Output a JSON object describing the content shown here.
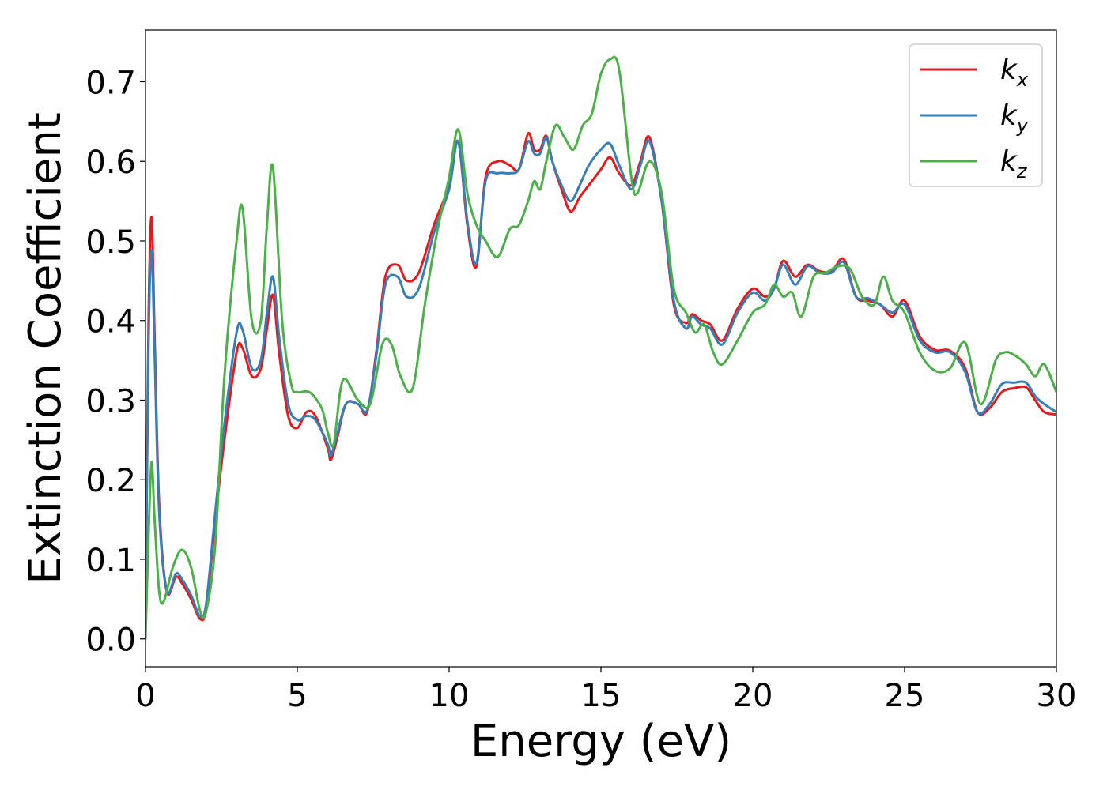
{
  "chart_data": {
    "type": "line",
    "title": "",
    "xlabel": "Energy (eV)",
    "ylabel": "Extinction Coefficient",
    "xlim": [
      0,
      30
    ],
    "ylim": [
      -0.035,
      0.765
    ],
    "xticks": [
      0,
      5,
      10,
      15,
      20,
      25,
      30
    ],
    "xtick_labels": [
      "0",
      "5",
      "10",
      "15",
      "20",
      "25",
      "30"
    ],
    "yticks": [
      0.0,
      0.1,
      0.2,
      0.3,
      0.4,
      0.5,
      0.6,
      0.7
    ],
    "ytick_labels": [
      "0.0",
      "0.1",
      "0.2",
      "0.3",
      "0.4",
      "0.5",
      "0.6",
      "0.7"
    ],
    "grid": false,
    "legend_position": "top-right",
    "series": [
      {
        "name": "k",
        "subscript": "x",
        "color": "#e41a1c",
        "x": [
          0,
          0.1,
          0.2,
          0.3,
          0.45,
          0.7,
          1.0,
          1.2,
          1.5,
          1.8,
          2.0,
          2.3,
          2.6,
          3.0,
          3.2,
          3.5,
          3.8,
          4.0,
          4.2,
          4.4,
          4.7,
          5.0,
          5.3,
          5.6,
          6.0,
          6.1,
          6.3,
          6.6,
          7.0,
          7.3,
          7.6,
          7.9,
          8.3,
          8.6,
          9.0,
          9.5,
          10.0,
          10.3,
          10.6,
          10.9,
          11.2,
          11.6,
          12.0,
          12.3,
          12.6,
          12.8,
          13.0,
          13.2,
          13.4,
          13.7,
          14.0,
          14.3,
          14.6,
          15.0,
          15.3,
          15.6,
          16.0,
          16.3,
          16.6,
          17.0,
          17.4,
          17.8,
          18.0,
          18.3,
          18.6,
          19.0,
          19.5,
          20.0,
          20.4,
          20.7,
          21.0,
          21.4,
          21.8,
          22.2,
          22.6,
          23.0,
          23.4,
          23.8,
          24.2,
          24.6,
          25.0,
          25.5,
          26.0,
          26.5,
          27.0,
          27.4,
          27.8,
          28.2,
          28.6,
          29.0,
          29.3,
          29.6,
          30.0
        ],
        "y": [
          0.03,
          0.4,
          0.53,
          0.38,
          0.17,
          0.06,
          0.078,
          0.07,
          0.05,
          0.025,
          0.04,
          0.15,
          0.25,
          0.36,
          0.365,
          0.33,
          0.34,
          0.39,
          0.432,
          0.36,
          0.28,
          0.265,
          0.285,
          0.28,
          0.24,
          0.225,
          0.25,
          0.295,
          0.295,
          0.285,
          0.36,
          0.455,
          0.47,
          0.45,
          0.46,
          0.52,
          0.57,
          0.625,
          0.52,
          0.468,
          0.58,
          0.6,
          0.595,
          0.59,
          0.635,
          0.615,
          0.615,
          0.632,
          0.6,
          0.565,
          0.537,
          0.555,
          0.57,
          0.59,
          0.605,
          0.585,
          0.57,
          0.6,
          0.63,
          0.55,
          0.42,
          0.397,
          0.408,
          0.4,
          0.395,
          0.375,
          0.415,
          0.44,
          0.43,
          0.44,
          0.475,
          0.455,
          0.47,
          0.462,
          0.462,
          0.477,
          0.43,
          0.425,
          0.42,
          0.405,
          0.425,
          0.38,
          0.363,
          0.362,
          0.34,
          0.285,
          0.29,
          0.31,
          0.315,
          0.316,
          0.3,
          0.285,
          0.282
        ]
      },
      {
        "name": "k",
        "subscript": "y",
        "color": "#377eb8",
        "x": [
          0,
          0.1,
          0.2,
          0.3,
          0.45,
          0.7,
          1.0,
          1.2,
          1.5,
          1.8,
          2.0,
          2.3,
          2.6,
          3.0,
          3.2,
          3.5,
          3.8,
          4.0,
          4.2,
          4.4,
          4.7,
          5.0,
          5.3,
          5.6,
          6.0,
          6.1,
          6.3,
          6.6,
          7.0,
          7.3,
          7.6,
          7.9,
          8.3,
          8.6,
          9.0,
          9.5,
          10.0,
          10.3,
          10.6,
          10.9,
          11.2,
          11.6,
          12.0,
          12.3,
          12.6,
          12.8,
          13.0,
          13.2,
          13.4,
          13.7,
          14.0,
          14.3,
          14.6,
          15.0,
          15.3,
          15.6,
          16.0,
          16.3,
          16.6,
          17.0,
          17.4,
          17.8,
          18.0,
          18.3,
          18.6,
          19.0,
          19.5,
          20.0,
          20.4,
          20.7,
          21.0,
          21.4,
          21.8,
          22.2,
          22.6,
          23.0,
          23.4,
          23.8,
          24.2,
          24.6,
          25.0,
          25.5,
          26.0,
          26.5,
          27.0,
          27.4,
          27.8,
          28.2,
          28.6,
          29.0,
          29.3,
          29.6,
          30.0
        ],
        "y": [
          0.02,
          0.37,
          0.488,
          0.36,
          0.16,
          0.06,
          0.082,
          0.075,
          0.055,
          0.028,
          0.045,
          0.16,
          0.27,
          0.385,
          0.388,
          0.34,
          0.35,
          0.41,
          0.455,
          0.38,
          0.295,
          0.275,
          0.28,
          0.275,
          0.245,
          0.23,
          0.255,
          0.295,
          0.295,
          0.287,
          0.355,
          0.445,
          0.455,
          0.43,
          0.44,
          0.51,
          0.565,
          0.625,
          0.525,
          0.472,
          0.575,
          0.585,
          0.585,
          0.59,
          0.625,
          0.61,
          0.61,
          0.63,
          0.6,
          0.57,
          0.55,
          0.57,
          0.595,
          0.615,
          0.622,
          0.595,
          0.565,
          0.595,
          0.625,
          0.55,
          0.425,
          0.39,
          0.405,
          0.395,
          0.39,
          0.37,
          0.41,
          0.435,
          0.425,
          0.44,
          0.47,
          0.445,
          0.468,
          0.46,
          0.46,
          0.473,
          0.43,
          0.428,
          0.42,
          0.41,
          0.42,
          0.375,
          0.36,
          0.36,
          0.335,
          0.285,
          0.295,
          0.32,
          0.322,
          0.322,
          0.305,
          0.295,
          0.285
        ]
      },
      {
        "name": "k",
        "subscript": "z",
        "color": "#4daf4a",
        "x": [
          0,
          0.1,
          0.2,
          0.3,
          0.45,
          0.6,
          0.9,
          1.2,
          1.5,
          1.8,
          2.0,
          2.3,
          2.6,
          3.0,
          3.2,
          3.5,
          3.8,
          4.0,
          4.2,
          4.5,
          4.8,
          5.0,
          5.4,
          5.8,
          6.0,
          6.2,
          6.5,
          7.0,
          7.4,
          7.8,
          8.1,
          8.4,
          8.8,
          9.2,
          9.6,
          10.0,
          10.3,
          10.6,
          10.9,
          11.2,
          11.6,
          12.0,
          12.3,
          12.6,
          12.8,
          13.0,
          13.2,
          13.5,
          13.8,
          14.1,
          14.4,
          14.7,
          15.0,
          15.3,
          15.6,
          16.0,
          16.2,
          16.6,
          17.0,
          17.4,
          17.8,
          18.1,
          18.4,
          18.7,
          19.0,
          19.5,
          20.0,
          20.4,
          20.7,
          21.0,
          21.3,
          21.6,
          22.0,
          22.4,
          22.8,
          23.2,
          23.6,
          24.0,
          24.3,
          24.6,
          25.0,
          25.5,
          26.0,
          26.5,
          27.0,
          27.5,
          28.0,
          28.3,
          28.6,
          29.0,
          29.3,
          29.6,
          30.0
        ],
        "y": [
          0.0,
          0.13,
          0.222,
          0.15,
          0.06,
          0.047,
          0.09,
          0.112,
          0.09,
          0.035,
          0.035,
          0.12,
          0.33,
          0.5,
          0.54,
          0.4,
          0.4,
          0.52,
          0.592,
          0.4,
          0.32,
          0.31,
          0.31,
          0.29,
          0.26,
          0.245,
          0.325,
          0.3,
          0.295,
          0.37,
          0.37,
          0.33,
          0.315,
          0.42,
          0.51,
          0.58,
          0.64,
          0.56,
          0.52,
          0.5,
          0.48,
          0.515,
          0.52,
          0.55,
          0.575,
          0.565,
          0.6,
          0.645,
          0.63,
          0.615,
          0.645,
          0.66,
          0.71,
          0.728,
          0.715,
          0.58,
          0.56,
          0.6,
          0.56,
          0.44,
          0.41,
          0.385,
          0.395,
          0.36,
          0.345,
          0.375,
          0.41,
          0.42,
          0.445,
          0.43,
          0.435,
          0.405,
          0.455,
          0.46,
          0.468,
          0.465,
          0.43,
          0.42,
          0.455,
          0.425,
          0.41,
          0.36,
          0.337,
          0.34,
          0.372,
          0.295,
          0.35,
          0.36,
          0.357,
          0.345,
          0.33,
          0.345,
          0.31
        ]
      }
    ]
  }
}
